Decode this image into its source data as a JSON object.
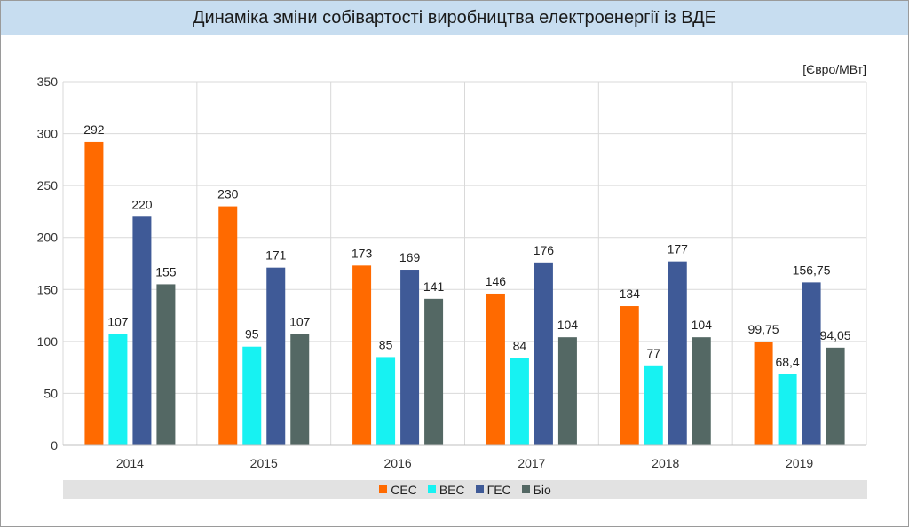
{
  "chart_data": {
    "type": "bar",
    "title": "Динаміка зміни собівартості виробництва  електроенергії із ВДЕ",
    "unit_label": "[Євро/МВт]",
    "categories": [
      "2014",
      "2015",
      "2016",
      "2017",
      "2018",
      "2019"
    ],
    "ylim": [
      0,
      350
    ],
    "yticks": [
      "0",
      "50",
      "100",
      "150",
      "200",
      "250",
      "300",
      "350"
    ],
    "grid": true,
    "legend_position": "bottom",
    "series": [
      {
        "name": "СЕС",
        "color": "#ff6a00",
        "values": [
          292,
          230,
          173,
          146,
          134,
          99.75
        ],
        "labels": [
          "292",
          "230",
          "173",
          "146",
          "134",
          "99,75"
        ]
      },
      {
        "name": "ВЕС",
        "color": "#17f2f2",
        "values": [
          107,
          95,
          85,
          84,
          77,
          68.4
        ],
        "labels": [
          "107",
          "95",
          "85",
          "84",
          "77",
          "68,4"
        ]
      },
      {
        "name": "ГЕС",
        "color": "#3f5a97",
        "values": [
          220,
          171,
          169,
          176,
          177,
          156.75
        ],
        "labels": [
          "220",
          "171",
          "169",
          "176",
          "177",
          "156,75"
        ]
      },
      {
        "name": "Біо",
        "color": "#546864",
        "values": [
          155,
          107,
          141,
          104,
          104,
          94.05
        ],
        "labels": [
          "155",
          "107",
          "141",
          "104",
          "104",
          "94,05"
        ]
      }
    ]
  }
}
